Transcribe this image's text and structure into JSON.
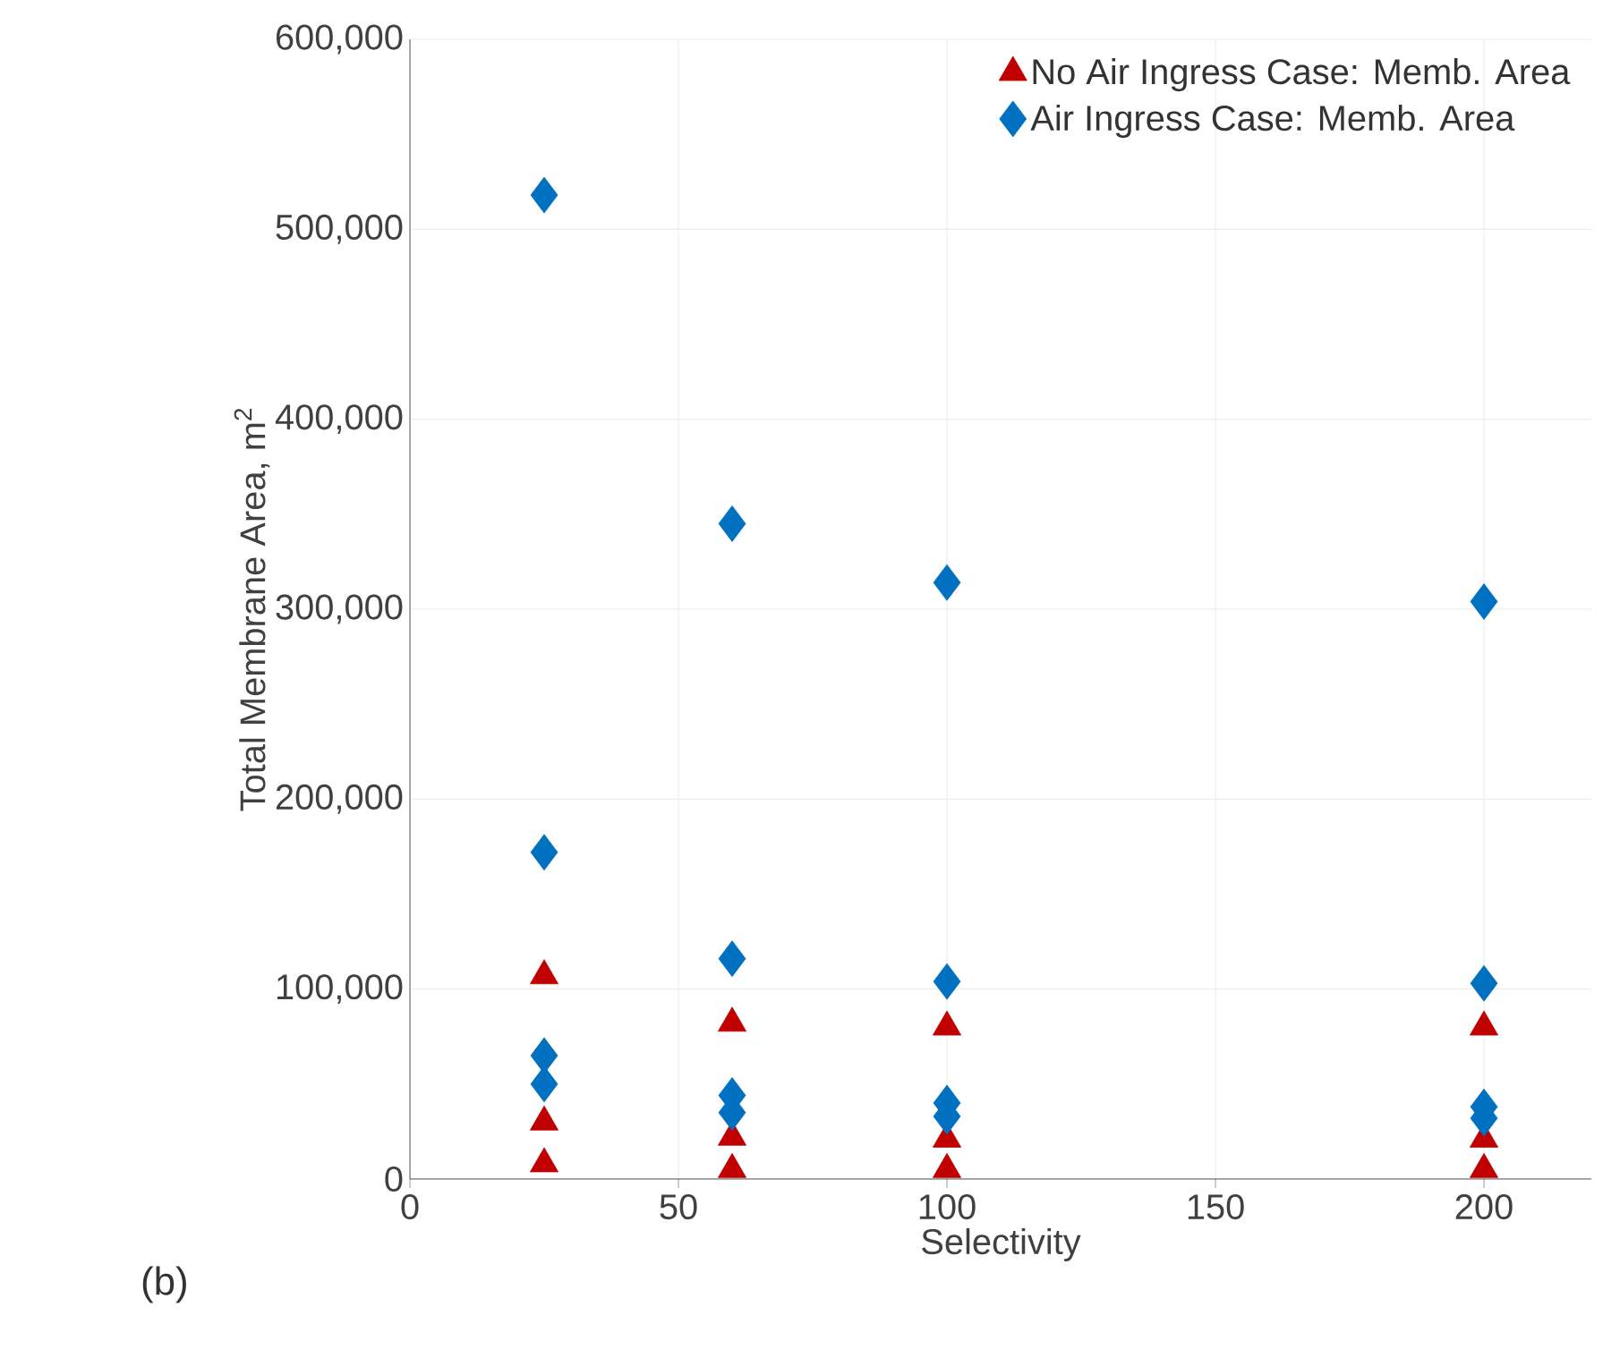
{
  "chart_data": {
    "type": "scatter",
    "xlabel": "Selectivity",
    "ylabel": "Total Membrane Area, m$^{2}$",
    "xlim": [
      0,
      220
    ],
    "xticks": [
      0,
      50,
      100,
      150,
      200
    ],
    "ylim": [
      0,
      600000
    ],
    "yticks": [
      {
        "value": 0,
        "label": "0"
      },
      {
        "value": 100000,
        "label": "100,000"
      },
      {
        "value": 200000,
        "label": "200,000"
      },
      {
        "value": 300000,
        "label": "300,000"
      },
      {
        "value": 400000,
        "label": "400,000"
      },
      {
        "value": 500000,
        "label": "500,000"
      },
      {
        "value": 600000,
        "label": "600,000"
      }
    ],
    "grid": true,
    "legend": "top right",
    "annotations": [
      "(b)"
    ],
    "series": [
      {
        "name": "No Air Ingress Case: Memb. Area",
        "color": "#c00000",
        "marker": "triangle",
        "x": [
          25,
          25,
          25,
          60,
          60,
          60,
          100,
          100,
          100,
          200,
          200,
          200
        ],
        "values": [
          107000,
          30000,
          8000,
          82000,
          22000,
          5000,
          80000,
          21000,
          5000,
          80000,
          21000,
          5000
        ]
      },
      {
        "name": "Air Ingress Case: Memb. Area",
        "color": "#0070c0",
        "marker": "diamond",
        "x": [
          25,
          25,
          25,
          25,
          60,
          60,
          60,
          60,
          100,
          100,
          100,
          100,
          200,
          200,
          200,
          200
        ],
        "values": [
          518000,
          172000,
          65000,
          50000,
          345000,
          116000,
          44000,
          35000,
          314000,
          104000,
          40000,
          33000,
          304000,
          103000,
          38000,
          32000
        ]
      }
    ]
  }
}
